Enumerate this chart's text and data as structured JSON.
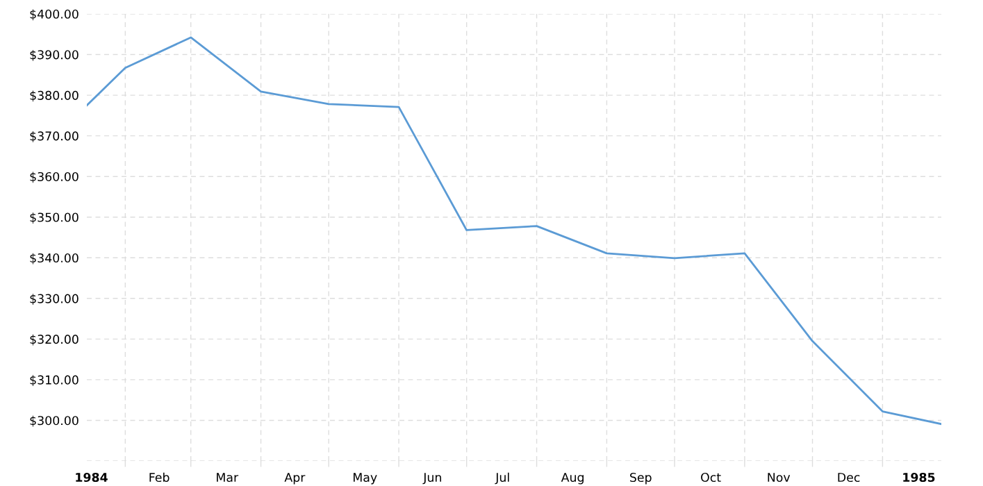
{
  "chart_data": {
    "type": "line",
    "x": [
      "1984-01-14",
      "1984-01-31",
      "1984-02-29",
      "1984-03-31",
      "1984-04-30",
      "1984-05-31",
      "1984-06-30",
      "1984-07-31",
      "1984-08-31",
      "1984-09-30",
      "1984-10-31",
      "1984-11-30",
      "1984-12-31",
      "1985-01-26"
    ],
    "series": [
      {
        "color": "#5b9bd5",
        "values": [
          377.5,
          386.7,
          394.2,
          380.9,
          377.8,
          377.1,
          346.8,
          347.8,
          341.1,
          339.9,
          341.1,
          319.5,
          302.2,
          299.1
        ]
      }
    ],
    "xlim": [
      "1984-01-14",
      "1985-01-26"
    ],
    "xticks": [
      {
        "value": "1984-01-16",
        "label": "1984"
      },
      {
        "value": "1984-01-31",
        "label": null
      },
      {
        "value": "1984-02-15",
        "label": "Feb"
      },
      {
        "value": "1984-02-29",
        "label": null
      },
      {
        "value": "1984-03-16",
        "label": "Mar"
      },
      {
        "value": "1984-03-31",
        "label": null
      },
      {
        "value": "1984-04-15",
        "label": "Apr"
      },
      {
        "value": "1984-04-30",
        "label": null
      },
      {
        "value": "1984-05-16",
        "label": "May"
      },
      {
        "value": "1984-05-31",
        "label": null
      },
      {
        "value": "1984-06-15",
        "label": "Jun"
      },
      {
        "value": "1984-06-30",
        "label": null
      },
      {
        "value": "1984-07-16",
        "label": "Jul"
      },
      {
        "value": "1984-07-31",
        "label": null
      },
      {
        "value": "1984-08-16",
        "label": "Aug"
      },
      {
        "value": "1984-08-31",
        "label": null
      },
      {
        "value": "1984-09-15",
        "label": "Sep"
      },
      {
        "value": "1984-09-30",
        "label": null
      },
      {
        "value": "1984-10-16",
        "label": "Oct"
      },
      {
        "value": "1984-10-31",
        "label": null
      },
      {
        "value": "1984-11-15",
        "label": "Nov"
      },
      {
        "value": "1984-11-30",
        "label": null
      },
      {
        "value": "1984-12-16",
        "label": "Dec"
      },
      {
        "value": "1984-12-31",
        "label": null
      },
      {
        "value": "1985-01-16",
        "label": "1985"
      }
    ],
    "ylim": [
      290,
      400
    ],
    "yticks": [
      {
        "value": 290,
        "label": null
      },
      {
        "value": 300,
        "label": "$300.00"
      },
      {
        "value": 310,
        "label": "$310.00"
      },
      {
        "value": 320,
        "label": "$320.00"
      },
      {
        "value": 330,
        "label": "$330.00"
      },
      {
        "value": 340,
        "label": "$340.00"
      },
      {
        "value": 350,
        "label": "$350.00"
      },
      {
        "value": 360,
        "label": "$360.00"
      },
      {
        "value": 370,
        "label": "$370.00"
      },
      {
        "value": 380,
        "label": "$380.00"
      },
      {
        "value": 390,
        "label": "$390.00"
      },
      {
        "value": 400,
        "label": "$400.00"
      }
    ],
    "grid": true,
    "line_style": "solid"
  }
}
